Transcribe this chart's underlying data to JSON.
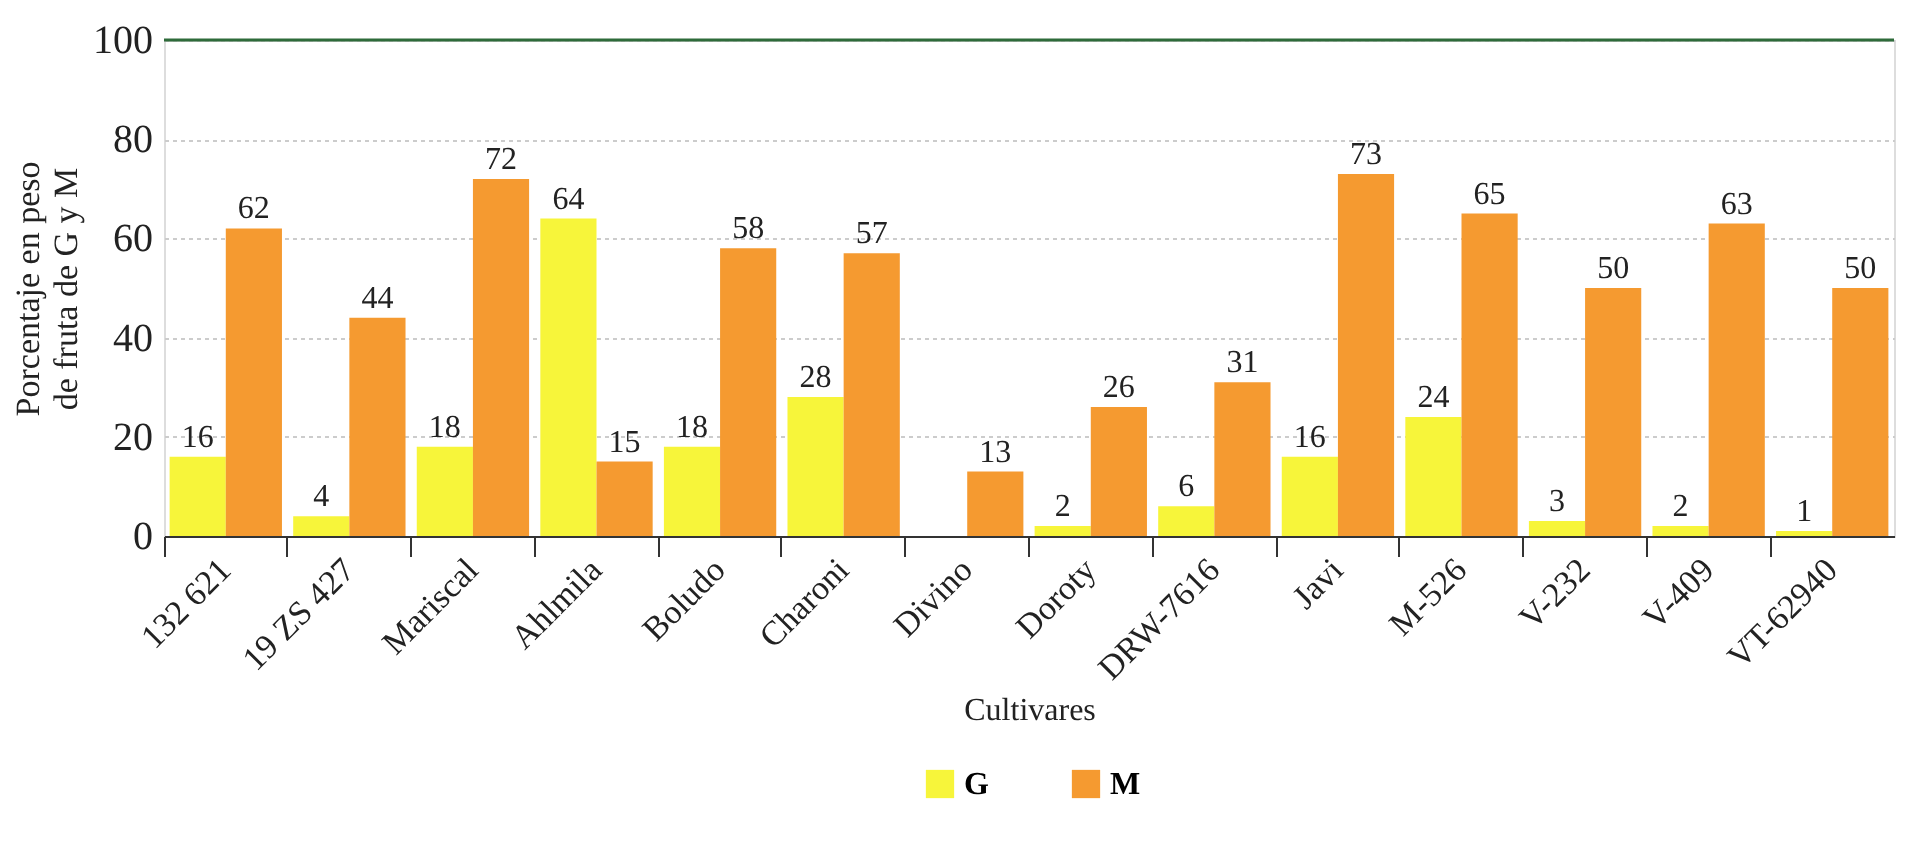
{
  "chart_data": {
    "type": "bar",
    "xlabel": "Cultivares",
    "ylabel": "Porcentaje en peso\nde fruta de G y M",
    "categories": [
      "132 621",
      "19 ZS 427",
      "Mariscal",
      "Ahlmila",
      "Boludo",
      "Charoni",
      "Divino",
      "Doroty",
      "DRW-7616",
      "Javi",
      "M-526",
      "V-232",
      "V-409",
      "VT-62940"
    ],
    "series": [
      {
        "name": "G",
        "color": "#f7f53a",
        "values": [
          16,
          4,
          18,
          64,
          18,
          28,
          null,
          2,
          6,
          16,
          24,
          3,
          2,
          1
        ]
      },
      {
        "name": "M",
        "color": "#f59a30",
        "values": [
          62,
          44,
          72,
          15,
          58,
          57,
          13,
          26,
          31,
          73,
          65,
          50,
          63,
          50
        ]
      }
    ],
    "ylim": [
      0,
      100
    ],
    "yticks": [
      0,
      20,
      40,
      60,
      80,
      100
    ],
    "grid": "y",
    "legend": "bottom",
    "data_labels": true,
    "ref_lines": [
      {
        "axis": "y",
        "value": 100,
        "color": "#2e6b3a"
      }
    ]
  }
}
